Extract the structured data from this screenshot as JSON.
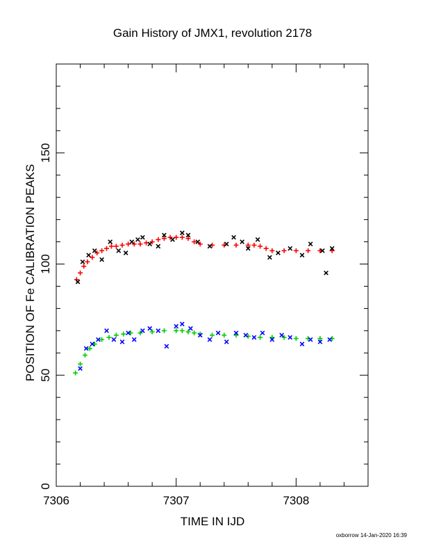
{
  "chart_data": {
    "type": "scatter",
    "title": "Gain History of JMX1, revolution 2178",
    "xlabel": "TIME IN IJD",
    "ylabel": "POSITION OF Fe CALIBRATION PEAKS",
    "xlim": [
      7306.0,
      7308.6
    ],
    "ylim": [
      0,
      190
    ],
    "xticks": [
      7306,
      7307,
      7308
    ],
    "xtick_labels": [
      "7306",
      "7307",
      "7308"
    ],
    "yticks": [
      0,
      50,
      100,
      150
    ],
    "ytick_labels": [
      "0",
      "50",
      "100",
      "150"
    ],
    "grid": false,
    "legend": "none",
    "series": [
      {
        "color": "#ff0000",
        "marker": "plus",
        "x": [
          7306.17,
          7306.2,
          7306.23,
          7306.26,
          7306.3,
          7306.34,
          7306.38,
          7306.42,
          7306.46,
          7306.5,
          7306.55,
          7306.6,
          7306.65,
          7306.7,
          7306.75,
          7306.8,
          7306.85,
          7306.9,
          7306.95,
          7307.0,
          7307.05,
          7307.1,
          7307.15,
          7307.2,
          7307.3,
          7307.4,
          7307.5,
          7307.6,
          7307.65,
          7307.7,
          7307.75,
          7307.8,
          7307.9,
          7308.0,
          7308.1,
          7308.2,
          7308.3
        ],
        "y": [
          93,
          96,
          99,
          101,
          103,
          105,
          106,
          107,
          108,
          108,
          108.5,
          109,
          109,
          109,
          109.5,
          110,
          111,
          111.5,
          112,
          112,
          112,
          111.5,
          110,
          109,
          108.5,
          108.5,
          108.5,
          108.5,
          108.5,
          108,
          107,
          106,
          106,
          106,
          106,
          106,
          106
        ]
      },
      {
        "color": "#000000",
        "marker": "x",
        "x": [
          7306.18,
          7306.22,
          7306.27,
          7306.32,
          7306.38,
          7306.45,
          7306.52,
          7306.58,
          7306.63,
          7306.68,
          7306.72,
          7306.78,
          7306.85,
          7306.9,
          7306.97,
          7307.05,
          7307.1,
          7307.18,
          7307.28,
          7307.42,
          7307.48,
          7307.55,
          7307.6,
          7307.68,
          7307.78,
          7307.85,
          7307.95,
          7308.05,
          7308.12,
          7308.22,
          7308.25,
          7308.3
        ],
        "y": [
          92,
          101,
          104,
          106,
          102,
          110,
          106,
          105,
          110,
          111,
          112,
          109,
          108,
          113,
          111,
          114,
          113,
          110,
          108,
          109,
          112,
          110,
          107,
          111,
          103,
          105,
          107,
          104,
          109,
          106,
          96,
          107
        ]
      },
      {
        "color": "#00cc00",
        "marker": "plus",
        "x": [
          7306.16,
          7306.2,
          7306.24,
          7306.28,
          7306.32,
          7306.38,
          7306.44,
          7306.5,
          7306.56,
          7306.62,
          7306.7,
          7306.8,
          7306.9,
          7307.0,
          7307.05,
          7307.1,
          7307.15,
          7307.2,
          7307.3,
          7307.4,
          7307.5,
          7307.6,
          7307.7,
          7307.8,
          7307.9,
          7308.0,
          7308.1,
          7308.2,
          7308.3
        ],
        "y": [
          51,
          55,
          59,
          62,
          64,
          66,
          67,
          68,
          68.5,
          69,
          69,
          69.5,
          70,
          70,
          70,
          69.5,
          69,
          68.5,
          68,
          68,
          68,
          67.5,
          67,
          67,
          67,
          66.5,
          66.5,
          66.5,
          66.5
        ]
      },
      {
        "color": "#0000ff",
        "marker": "x",
        "x": [
          7306.2,
          7306.25,
          7306.3,
          7306.35,
          7306.42,
          7306.48,
          7306.55,
          7306.6,
          7306.65,
          7306.72,
          7306.78,
          7306.85,
          7306.92,
          7307.0,
          7307.05,
          7307.12,
          7307.2,
          7307.28,
          7307.35,
          7307.42,
          7307.5,
          7307.58,
          7307.65,
          7307.72,
          7307.8,
          7307.88,
          7307.95,
          7308.05,
          7308.12,
          7308.2,
          7308.28
        ],
        "y": [
          53,
          62,
          64,
          66,
          70,
          66,
          65,
          69,
          66,
          70,
          71,
          70,
          63,
          72,
          73,
          71,
          68,
          66,
          69,
          65,
          69,
          68,
          67,
          69,
          66,
          68,
          67,
          64,
          66,
          65,
          66
        ]
      }
    ]
  },
  "footer": "oxborrow 14-Jan-2020 16:39"
}
